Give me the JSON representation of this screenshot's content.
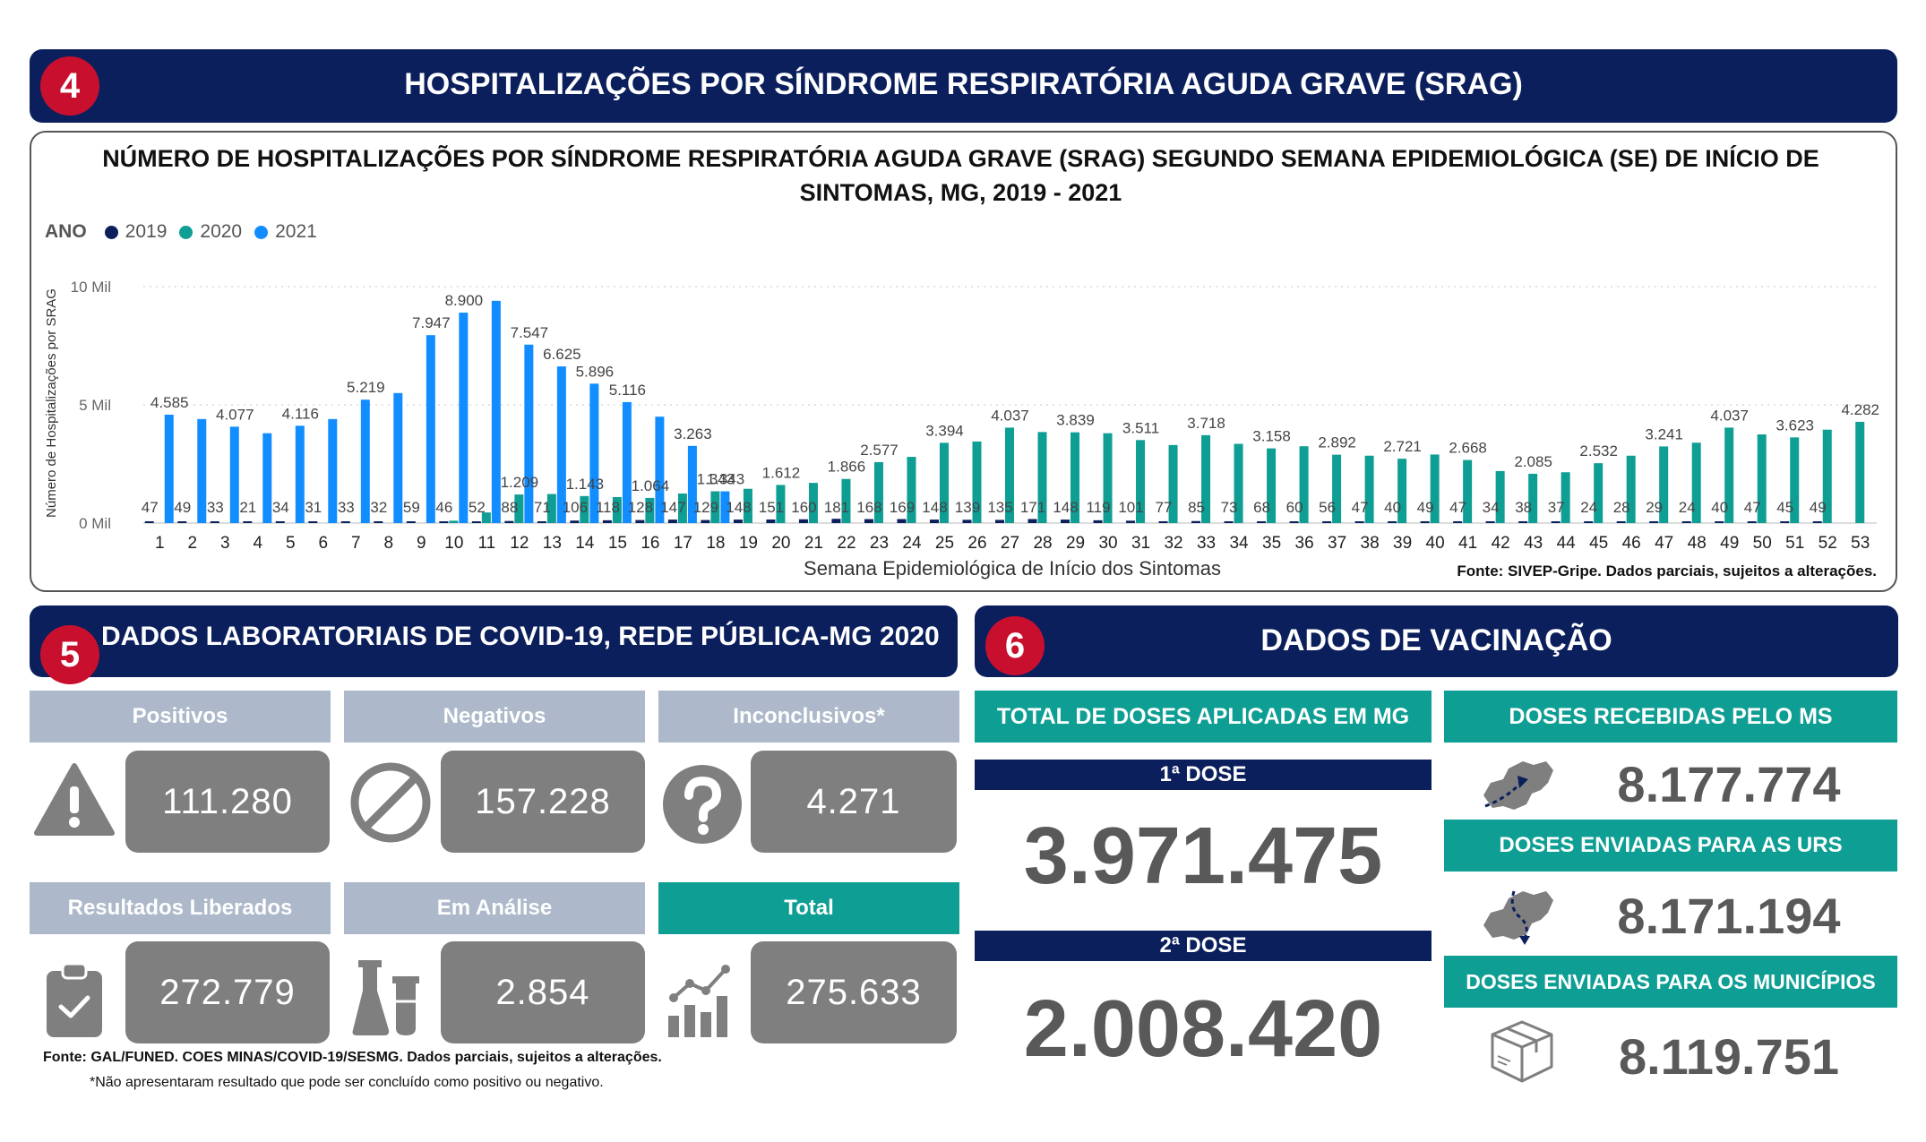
{
  "section4": {
    "number": "4",
    "title": "HOSPITALIZAÇÕES POR SÍNDROME RESPIRATÓRIA AGUDA GRAVE (SRAG)"
  },
  "chart_data": {
    "type": "bar",
    "title": "NÚMERO DE HOSPITALIZAÇÕES POR SÍNDROME RESPIRATÓRIA AGUDA GRAVE (SRAG) SEGUNDO SEMANA EPIDEMIOLÓGICA (SE) DE INÍCIO DE SINTOMAS, MG, 2019 - 2021",
    "legend_title": "ANO",
    "xlabel": "Semana Epidemiológica de Início dos Sintomas",
    "ylabel": "Número de Hospitalizações por SRAG",
    "ylim": [
      0,
      10000
    ],
    "yticks": [
      {
        "value": 0,
        "label": "0 Mil"
      },
      {
        "value": 5000,
        "label": "5 Mil"
      },
      {
        "value": 10000,
        "label": "10 Mil"
      }
    ],
    "grid": true,
    "legend_position": "top-left",
    "categories": [
      "1",
      "2",
      "3",
      "4",
      "5",
      "6",
      "7",
      "8",
      "9",
      "10",
      "11",
      "12",
      "13",
      "14",
      "15",
      "16",
      "17",
      "18",
      "19",
      "20",
      "21",
      "22",
      "23",
      "24",
      "25",
      "26",
      "27",
      "28",
      "29",
      "30",
      "31",
      "32",
      "33",
      "34",
      "35",
      "36",
      "37",
      "38",
      "39",
      "40",
      "41",
      "42",
      "43",
      "44",
      "45",
      "46",
      "47",
      "48",
      "49",
      "50",
      "51",
      "52",
      "53"
    ],
    "series": [
      {
        "name": "2019",
        "color": "#0b1f5c",
        "values": [
          47,
          49,
          33,
          21,
          34,
          31,
          33,
          32,
          59,
          46,
          52,
          88,
          71,
          106,
          118,
          128,
          147,
          129,
          148,
          151,
          160,
          181,
          168,
          169,
          148,
          139,
          135,
          171,
          148,
          119,
          101,
          77,
          85,
          73,
          68,
          60,
          56,
          47,
          40,
          49,
          47,
          34,
          38,
          37,
          24,
          28,
          29,
          24,
          40,
          47,
          45,
          49,
          null
        ],
        "labels": [
          "47",
          "49",
          "33",
          "21",
          "34",
          "31",
          "33",
          "32",
          "59",
          "46",
          "52",
          "88",
          "71",
          "106",
          "118",
          "128",
          "147",
          "129",
          "148",
          "151",
          "160",
          "181",
          "168",
          "169",
          "148",
          "139",
          "135",
          "171",
          "148",
          "119",
          "101",
          "77",
          "85",
          "73",
          "68",
          "60",
          "56",
          "47",
          "40",
          "49",
          "47",
          "34",
          "38",
          "37",
          "24",
          "28",
          "29",
          "24",
          "40",
          "47",
          "45",
          "49",
          ""
        ]
      },
      {
        "name": "2020",
        "color": "#0e9e94",
        "values": [
          null,
          null,
          null,
          null,
          null,
          null,
          null,
          null,
          null,
          100,
          450,
          1209,
          1230,
          1143,
          1100,
          1064,
          1250,
          1343,
          1450,
          1612,
          1700,
          1866,
          2577,
          2800,
          3394,
          3450,
          4037,
          3850,
          3839,
          3800,
          3511,
          3300,
          3718,
          3350,
          3158,
          3250,
          2892,
          2850,
          2721,
          2900,
          2668,
          2200,
          2085,
          2150,
          2532,
          2850,
          3241,
          3400,
          4037,
          3750,
          3623,
          3950,
          4282
        ],
        "labels": [
          "",
          "",
          "",
          "",
          "",
          "",
          "",
          "",
          "",
          "",
          "",
          "1.209",
          "",
          "1.143",
          "",
          "1.064",
          "",
          "1.343",
          "",
          "1.612",
          "",
          "1.866",
          "2.577",
          "",
          "3.394",
          "",
          "4.037",
          "",
          "3.839",
          "",
          "3.511",
          "",
          "3.718",
          "",
          "3.158",
          "",
          "2.892",
          "",
          "2.721",
          "",
          "2.668",
          "",
          "2.085",
          "",
          "2.532",
          "",
          "3.241",
          "",
          "4.037",
          "",
          "3.623",
          "",
          "4.282"
        ]
      },
      {
        "name": "2021",
        "color": "#118dff",
        "values": [
          4585,
          4400,
          4077,
          3800,
          4116,
          4400,
          5219,
          5500,
          7947,
          8900,
          9400,
          7547,
          6625,
          5896,
          5116,
          4500,
          3263,
          1343,
          null,
          null,
          null,
          null,
          null,
          null,
          null,
          null,
          null,
          null,
          null,
          null,
          null,
          null,
          null,
          null,
          null,
          null,
          null,
          null,
          null,
          null,
          null,
          null,
          null,
          null,
          null,
          null,
          null,
          null,
          null,
          null,
          null,
          null,
          null
        ],
        "labels": [
          "4.585",
          "",
          "4.077",
          "",
          "4.116",
          "",
          "5.219",
          "",
          "7.947",
          "8.900",
          "",
          "7.547",
          "6.625",
          "5.896",
          "5.116",
          "",
          "3.263",
          "1.343",
          "",
          "",
          "",
          "",
          "",
          "",
          "",
          "",
          "",
          "",
          "",
          "",
          "",
          "",
          "",
          "",
          "",
          "",
          "",
          "",
          "",
          "",
          "",
          "",
          "",
          "",
          "",
          "",
          "",
          "",
          "",
          "",
          "",
          "",
          ""
        ]
      }
    ],
    "source": "Fonte: SIVEP-Gripe. Dados parciais, sujeitos a alterações."
  },
  "section5": {
    "number": "5",
    "title": "DADOS LABORATORIAIS DE COVID-19, REDE PÚBLICA-MG 2020",
    "cards": [
      {
        "label": "Positivos",
        "value": "111.280",
        "icon": "warning-icon"
      },
      {
        "label": "Negativos",
        "value": "157.228",
        "icon": "prohibited-icon"
      },
      {
        "label": "Inconclusivos*",
        "value": "4.271",
        "icon": "question-icon"
      },
      {
        "label": "Resultados Liberados",
        "value": "272.779",
        "icon": "clipboard-check-icon"
      },
      {
        "label": "Em Análise",
        "value": "2.854",
        "icon": "lab-flask-icon"
      },
      {
        "label": "Total",
        "value": "275.633",
        "icon": "growth-chart-icon"
      }
    ],
    "source": "Fonte: GAL/FUNED. COES MINAS/COVID-19/SESMG. Dados parciais, sujeitos a alterações.",
    "footnote": "*Não apresentaram resultado que pode ser concluído como positivo ou negativo."
  },
  "section6": {
    "number": "6",
    "title": "DADOS DE VACINAÇÃO",
    "total_header": "TOTAL DE DOSES APLICADAS EM MG",
    "dose1_label": "1ª DOSE",
    "dose1_value": "3.971.475",
    "dose2_label": "2ª DOSE",
    "dose2_value": "2.008.420",
    "received_header": "DOSES RECEBIDAS PELO MS",
    "received_value": "8.177.774",
    "urs_header": "DOSES ENVIADAS PARA AS URS",
    "urs_value": "8.171.194",
    "municipios_header": "DOSES ENVIADAS PARA OS MUNICÍPIOS",
    "municipios_value": "8.119.751"
  },
  "colors": {
    "navy": "#0b1f5c",
    "teal": "#0e9e94",
    "blue": "#118dff",
    "red": "#c8102e",
    "grey_header": "#adb9ca",
    "value_box": "#7f7f7f"
  }
}
